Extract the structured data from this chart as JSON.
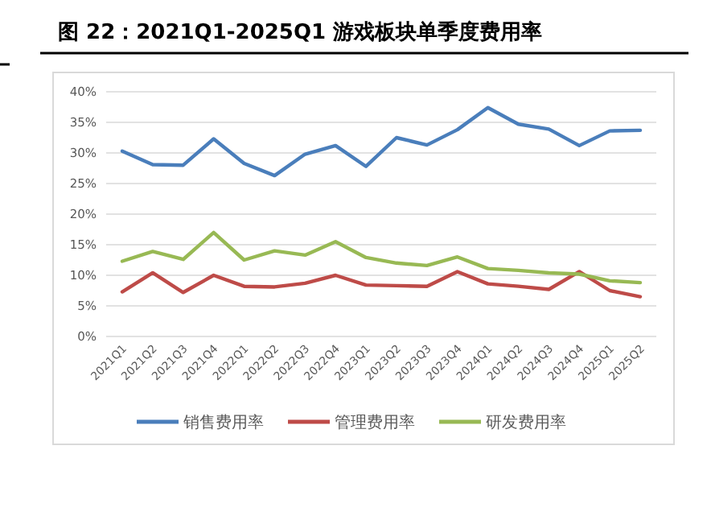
{
  "chart_data": {
    "type": "line",
    "title": "图 22：2021Q1-2025Q1 游戏板块单季度费用率",
    "categories": [
      "2021Q1",
      "2021Q2",
      "2021Q3",
      "2021Q4",
      "2022Q1",
      "2022Q2",
      "2022Q3",
      "2022Q4",
      "2023Q1",
      "2023Q2",
      "2023Q3",
      "2023Q4",
      "2024Q1",
      "2024Q2",
      "2024Q3",
      "2024Q4",
      "2025Q1",
      "2025Q2"
    ],
    "series": [
      {
        "name": "销售费用率",
        "color": "#4a7ebb",
        "values": [
          30.3,
          28.1,
          28.0,
          32.3,
          28.3,
          26.3,
          29.8,
          31.2,
          27.8,
          32.5,
          31.3,
          33.8,
          37.4,
          34.7,
          33.9,
          31.2,
          33.6,
          33.7
        ]
      },
      {
        "name": "管理费用率",
        "color": "#be4b48",
        "values": [
          7.3,
          10.4,
          7.2,
          10.0,
          8.2,
          8.1,
          8.7,
          10.0,
          8.4,
          8.3,
          8.2,
          10.6,
          8.6,
          8.2,
          7.7,
          10.6,
          7.5,
          6.5
        ]
      },
      {
        "name": "研发费用率",
        "color": "#98b954",
        "values": [
          12.3,
          13.9,
          12.6,
          17.0,
          12.5,
          14.0,
          13.3,
          15.5,
          12.9,
          12.0,
          11.6,
          13.0,
          11.1,
          10.8,
          10.4,
          10.2,
          9.1,
          8.8
        ]
      }
    ],
    "ylim": [
      0,
      40
    ],
    "yticks": [
      {
        "value": 0,
        "label": "0%"
      },
      {
        "value": 5,
        "label": "5%"
      },
      {
        "value": 10,
        "label": "10%"
      },
      {
        "value": 15,
        "label": "15%"
      },
      {
        "value": 20,
        "label": "20%"
      },
      {
        "value": 25,
        "label": "25%"
      },
      {
        "value": 30,
        "label": "30%"
      },
      {
        "value": 35,
        "label": "35%"
      },
      {
        "value": 40,
        "label": "40%"
      }
    ],
    "grid": "y",
    "legend": "bottom",
    "marker": "none",
    "line_style": "solid"
  }
}
